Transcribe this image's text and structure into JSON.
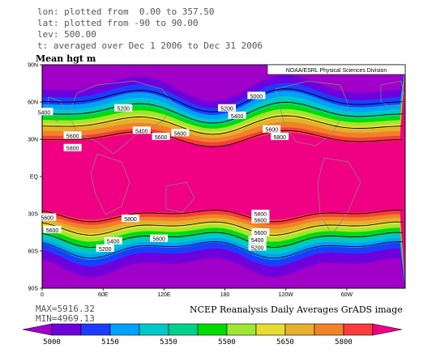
{
  "header": {
    "line1": "lon: plotted from  0.00 to 357.50",
    "line2": "lat: plotted from -90 to 90.00",
    "line3": "lev: 500.00",
    "line4": "t: averaged over Dec 1 2006 to Dec 31 2006"
  },
  "title": "Mean hgt m",
  "stats": {
    "max": "MAX=5916.32",
    "min": "MIN=4969.13"
  },
  "credit": "NCEP Reanalysis Daily Averages GrADS image",
  "chart_data": {
    "type": "heatmap",
    "variable": "Mean hgt m",
    "label_box": "NOAA/ESRL Physical Sciences Division",
    "x_ticks": [
      "0",
      "60E",
      "120E",
      "180",
      "120W",
      "60W"
    ],
    "y_ticks": [
      "90N",
      "60N",
      "30N",
      "EQ",
      "30S",
      "60S",
      "90S"
    ],
    "xlim": [
      0,
      357.5
    ],
    "ylim": [
      -90,
      90
    ],
    "contour_levels": [
      5200,
      5400,
      5600,
      5800
    ],
    "color_levels": [
      5000,
      5150,
      5350,
      5500,
      5650,
      5800
    ],
    "colorbar_labels": [
      "5000",
      "5150",
      "5350",
      "5500",
      "5650",
      "5800"
    ],
    "colorbar_colors": [
      "#a000c8",
      "#6e00dc",
      "#1e3cff",
      "#00a0ff",
      "#00c8c8",
      "#00d28c",
      "#00dc00",
      "#a0e632",
      "#e6dc32",
      "#e6af2d",
      "#f08228",
      "#fa3c3c",
      "#f00082"
    ],
    "contour_labels": [
      {
        "text": "5000",
        "lon": 211,
        "lat": 65
      },
      {
        "text": "5200",
        "lon": 80,
        "lat": 55
      },
      {
        "text": "5400",
        "lon": 2,
        "lat": 52
      },
      {
        "text": "5400",
        "lon": 98,
        "lat": 37
      },
      {
        "text": "5600",
        "lon": 136,
        "lat": 35
      },
      {
        "text": "5600",
        "lon": 117,
        "lat": 32
      },
      {
        "text": "5600",
        "lon": 30,
        "lat": 33
      },
      {
        "text": "5800",
        "lon": 30,
        "lat": 23
      },
      {
        "text": "5200",
        "lon": 182,
        "lat": 55
      },
      {
        "text": "5400",
        "lon": 192,
        "lat": 49
      },
      {
        "text": "5600",
        "lon": 226,
        "lat": 38
      },
      {
        "text": "5800",
        "lon": 234,
        "lat": 32
      },
      {
        "text": "5600",
        "lon": 5,
        "lat": -33
      },
      {
        "text": "5600",
        "lon": 10,
        "lat": -43
      },
      {
        "text": "5800",
        "lon": 87,
        "lat": -34
      },
      {
        "text": "5400",
        "lon": 70,
        "lat": -52
      },
      {
        "text": "5200",
        "lon": 62,
        "lat": -58
      },
      {
        "text": "5600",
        "lon": 115,
        "lat": -50
      },
      {
        "text": "5800",
        "lon": 215,
        "lat": -30
      },
      {
        "text": "5600",
        "lon": 215,
        "lat": -35
      },
      {
        "text": "5600",
        "lon": 215,
        "lat": -45
      },
      {
        "text": "5400",
        "lon": 212,
        "lat": -51
      },
      {
        "text": "5200",
        "lon": 212,
        "lat": -57
      }
    ]
  }
}
